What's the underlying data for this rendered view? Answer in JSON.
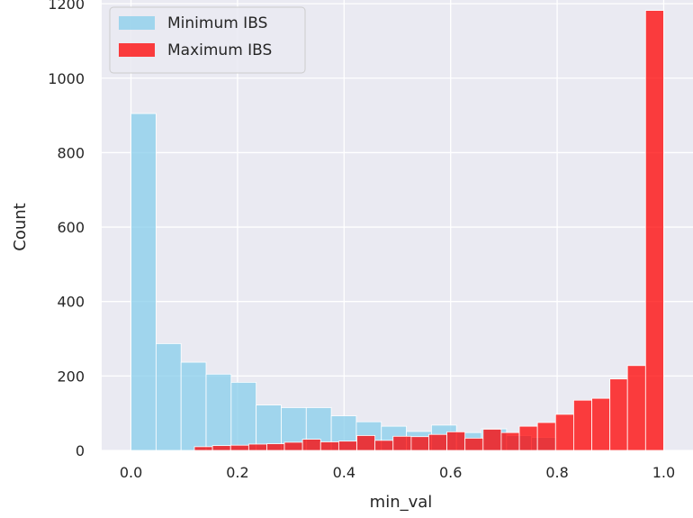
{
  "chart_data": {
    "type": "bar",
    "subtype": "histogram",
    "xlabel": "min_val",
    "ylabel": "Count",
    "xlim": [
      -0.055,
      1.055
    ],
    "ylim": [
      0,
      1210
    ],
    "xticks": [
      0.0,
      0.2,
      0.4,
      0.6,
      0.8,
      1.0
    ],
    "xtick_labels": [
      "0.0",
      "0.2",
      "0.4",
      "0.6",
      "0.8",
      "1.0"
    ],
    "yticks": [
      0,
      200,
      400,
      600,
      800,
      1000,
      1200
    ],
    "ytick_labels": [
      "0",
      "200",
      "400",
      "600",
      "800",
      "1000",
      "1200"
    ],
    "grid": true,
    "background": "#eaeaf2",
    "legend_position": "top-left",
    "series": [
      {
        "name": "Minimum IBS",
        "color": "#87ceeb",
        "bin_edges": [
          0.0,
          0.047,
          0.094,
          0.141,
          0.188,
          0.235,
          0.282,
          0.329,
          0.376,
          0.423,
          0.47,
          0.517,
          0.564,
          0.611,
          0.658,
          0.705,
          0.752,
          0.799
        ],
        "values": [
          905,
          287,
          237,
          205,
          183,
          122,
          115,
          115,
          93,
          77,
          65,
          51,
          68,
          48,
          58,
          40,
          35
        ]
      },
      {
        "name": "Maximum IBS",
        "color": "#ff0000",
        "bin_edges": [
          0.119,
          0.153,
          0.187,
          0.221,
          0.255,
          0.288,
          0.322,
          0.356,
          0.39,
          0.424,
          0.458,
          0.492,
          0.526,
          0.559,
          0.593,
          0.627,
          0.661,
          0.695,
          0.729,
          0.763,
          0.797,
          0.831,
          0.865,
          0.899,
          0.932,
          0.966,
          1.0
        ],
        "values": [
          10,
          13,
          14,
          17,
          18,
          22,
          30,
          23,
          25,
          40,
          27,
          38,
          37,
          43,
          50,
          33,
          57,
          48,
          65,
          75,
          97,
          135,
          140,
          192,
          228,
          1182
        ]
      }
    ]
  }
}
